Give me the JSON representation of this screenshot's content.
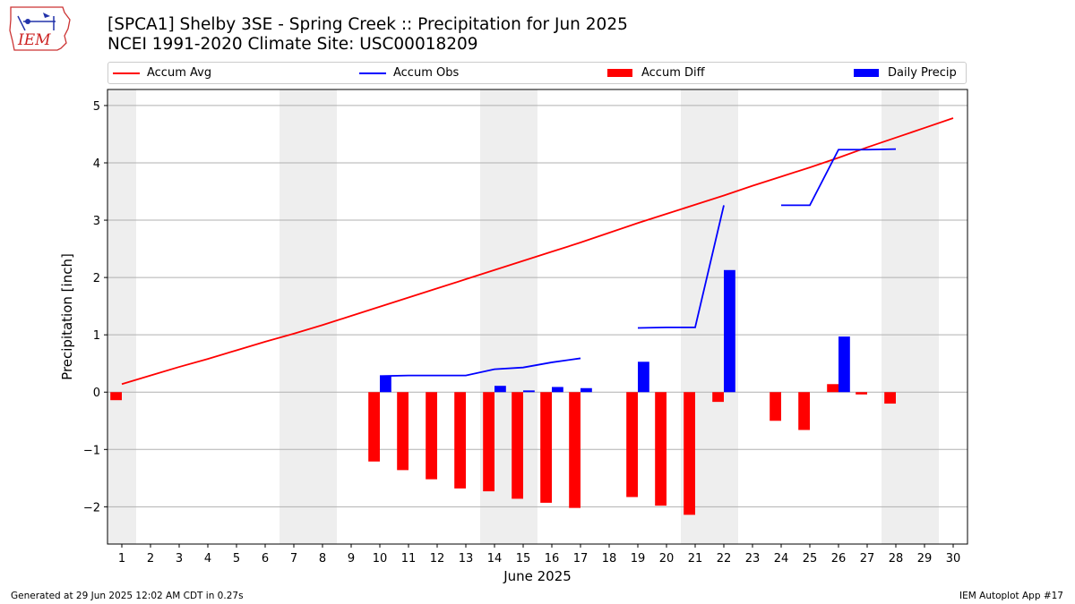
{
  "header": {
    "title_line1": "[SPCA1] Shelby 3SE - Spring Creek :: Precipitation for Jun 2025",
    "title_line2": "NCEI 1991-2020 Climate Site: USC00018209",
    "logo_text": "IEM"
  },
  "footer": {
    "generated": "Generated at 29 Jun 2025 12:02 AM CDT in 0.27s",
    "app": "IEM Autoplot App #17"
  },
  "chart_data": {
    "type": "bar",
    "title": "[SPCA1] Shelby 3SE - Spring Creek :: Precipitation for Jun 2025",
    "subtitle": "NCEI 1991-2020 Climate Site: USC00018209",
    "xlabel": "June 2025",
    "ylabel": "Precipitation [inch]",
    "xlim": [
      0.5,
      30.5
    ],
    "ylim": [
      -2.65,
      5.28
    ],
    "x_ticks": [
      1,
      2,
      3,
      4,
      5,
      6,
      7,
      8,
      9,
      10,
      11,
      12,
      13,
      14,
      15,
      16,
      17,
      18,
      19,
      20,
      21,
      22,
      23,
      24,
      25,
      26,
      27,
      28,
      29,
      30
    ],
    "y_ticks": [
      -2,
      -1,
      0,
      1,
      2,
      3,
      4,
      5
    ],
    "grid": "horizontal",
    "legend_position": "top",
    "weekend_bands": [
      [
        0.5,
        1.5
      ],
      [
        6.5,
        8.5
      ],
      [
        13.5,
        15.5
      ],
      [
        20.5,
        22.5
      ],
      [
        27.5,
        29.5
      ]
    ],
    "weekend_color": "#eeeeee",
    "legend": [
      {
        "name": "Accum Avg",
        "kind": "line",
        "color": "#ff0000"
      },
      {
        "name": "Accum Obs",
        "kind": "line",
        "color": "#0000ff"
      },
      {
        "name": "Accum Diff",
        "kind": "bar",
        "color": "#ff0000"
      },
      {
        "name": "Daily Precip",
        "kind": "bar",
        "color": "#0000ff"
      }
    ],
    "series": [
      {
        "name": "Accum Avg",
        "type": "line",
        "color": "#ff0000",
        "x": [
          1,
          2,
          3,
          4,
          5,
          6,
          7,
          8,
          9,
          10,
          11,
          12,
          13,
          14,
          15,
          16,
          17,
          18,
          19,
          20,
          21,
          22,
          23,
          24,
          25,
          26,
          27,
          28,
          29,
          30
        ],
        "values": [
          0.14,
          0.29,
          0.44,
          0.58,
          0.73,
          0.88,
          1.02,
          1.17,
          1.33,
          1.49,
          1.65,
          1.81,
          1.97,
          2.13,
          2.29,
          2.45,
          2.61,
          2.78,
          2.95,
          3.11,
          3.27,
          3.43,
          3.6,
          3.76,
          3.92,
          4.09,
          4.27,
          4.44,
          4.61,
          4.78
        ]
      },
      {
        "name": "Accum Obs",
        "type": "line",
        "color": "#0000ff",
        "segments": [
          {
            "x": [
              10,
              11,
              12,
              13,
              14,
              15,
              16,
              17
            ],
            "values": [
              0.28,
              0.29,
              0.29,
              0.29,
              0.4,
              0.43,
              0.52,
              0.59
            ]
          },
          {
            "x": [
              19,
              20,
              21,
              22
            ],
            "values": [
              1.12,
              1.13,
              1.13,
              3.26
            ]
          },
          {
            "x": [
              24,
              25,
              26,
              27,
              28
            ],
            "values": [
              3.26,
              3.26,
              4.23,
              4.23,
              4.24
            ]
          }
        ]
      },
      {
        "name": "Accum Diff",
        "type": "bar",
        "color": "#ff0000",
        "x": [
          1,
          10,
          11,
          12,
          13,
          14,
          15,
          16,
          17,
          19,
          20,
          21,
          22,
          24,
          25,
          26,
          27,
          28
        ],
        "values": [
          -0.14,
          -1.21,
          -1.36,
          -1.52,
          -1.68,
          -1.73,
          -1.86,
          -1.93,
          -2.02,
          -1.83,
          -1.98,
          -2.14,
          -0.17,
          -0.5,
          -0.66,
          0.14,
          -0.04,
          -0.2
        ]
      },
      {
        "name": "Daily Precip",
        "type": "bar",
        "color": "#0000ff",
        "x": [
          10,
          14,
          15,
          16,
          17,
          19,
          22,
          26
        ],
        "values": [
          0.28,
          0.11,
          0.03,
          0.09,
          0.07,
          0.53,
          2.13,
          0.97
        ]
      }
    ]
  }
}
